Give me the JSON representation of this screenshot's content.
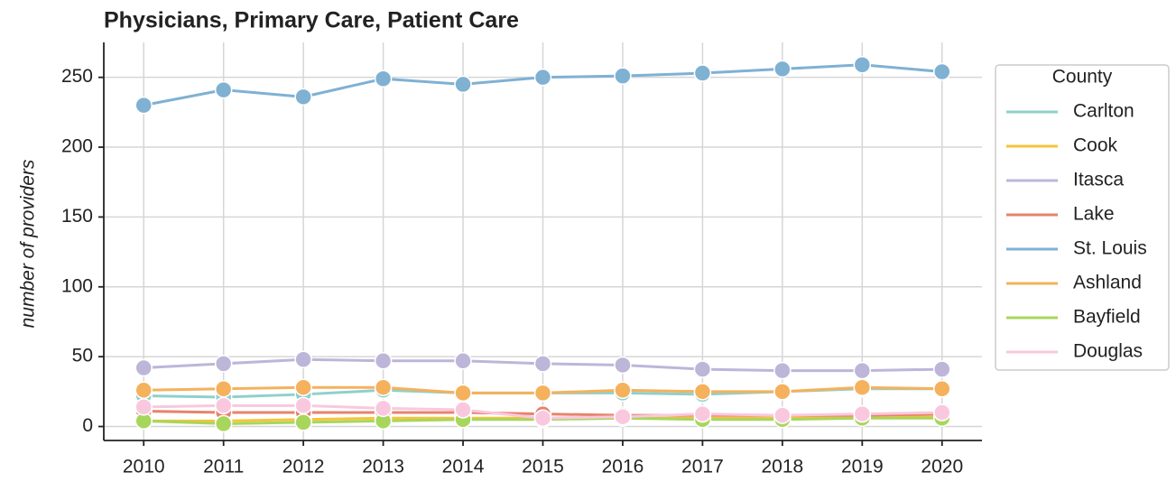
{
  "chart_data": {
    "type": "line",
    "title": "Physicians, Primary Care, Patient Care",
    "ylabel": "number of providers",
    "x": [
      2010,
      2011,
      2012,
      2013,
      2014,
      2015,
      2016,
      2017,
      2018,
      2019,
      2020
    ],
    "xlim": [
      2009.5,
      2020.5
    ],
    "xticks": [
      2010,
      2011,
      2012,
      2013,
      2014,
      2015,
      2016,
      2017,
      2018,
      2019,
      2020
    ],
    "ylim": [
      -10,
      275
    ],
    "yticks": [
      0,
      50,
      100,
      150,
      200,
      250
    ],
    "grid": true,
    "legend_title": "County",
    "legend": "outside-right",
    "series": [
      {
        "name": "Carlton",
        "color": "#8fd0cc",
        "values": [
          22,
          21,
          23,
          26,
          24,
          24,
          24,
          23,
          25,
          27,
          27
        ]
      },
      {
        "name": "Cook",
        "color": "#f6c43a",
        "values": [
          4,
          4,
          5,
          6,
          6,
          6,
          6,
          6,
          6,
          7,
          7
        ]
      },
      {
        "name": "Itasca",
        "color": "#bdb6d9",
        "values": [
          42,
          45,
          48,
          47,
          47,
          45,
          44,
          41,
          40,
          40,
          41
        ]
      },
      {
        "name": "Lake",
        "color": "#e8826c",
        "values": [
          11,
          10,
          10,
          10,
          10,
          9,
          8,
          8,
          8,
          8,
          9
        ]
      },
      {
        "name": "St. Louis",
        "color": "#7fb1d3",
        "values": [
          230,
          241,
          236,
          249,
          245,
          250,
          251,
          253,
          256,
          259,
          254
        ]
      },
      {
        "name": "Ashland",
        "color": "#f5b15c",
        "values": [
          26,
          27,
          28,
          28,
          24,
          24,
          26,
          25,
          25,
          28,
          27
        ]
      },
      {
        "name": "Bayfield",
        "color": "#a8d65c",
        "values": [
          4,
          2,
          3,
          4,
          5,
          5,
          6,
          5,
          5,
          6,
          6
        ]
      },
      {
        "name": "Douglas",
        "color": "#f9c8df",
        "values": [
          14,
          15,
          15,
          13,
          12,
          6,
          7,
          9,
          8,
          9,
          10
        ]
      }
    ]
  }
}
